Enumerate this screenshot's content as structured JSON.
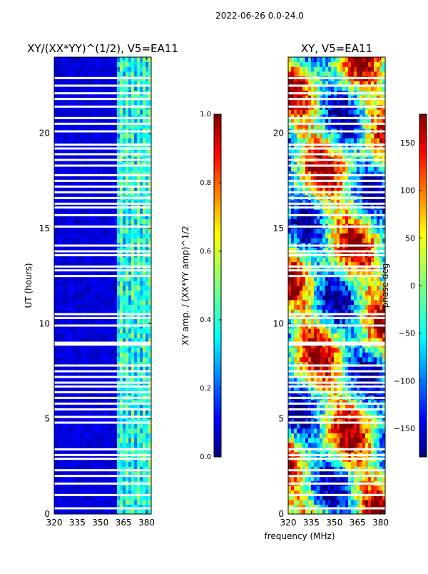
{
  "figure": {
    "suptitle": "2022-06-26 0.0-24.0",
    "shared_xlabel": "frequency (MHz)"
  },
  "chart_data": [
    {
      "type": "heatmap",
      "title": "XY/(XX*YY)¹ᐟ², V5=EA11",
      "title_plain": "XY/(XX*YY)^(1/2), V5=EA11",
      "xlabel": "frequency (MHz)",
      "ylabel": "UT (hours)",
      "xlim": [
        320,
        383
      ],
      "ylim": [
        0,
        24
      ],
      "xticks": [
        320,
        335,
        350,
        365,
        380
      ],
      "yticks": [
        0,
        5,
        10,
        15,
        20
      ],
      "colormap": "jet",
      "colorbar": {
        "label": "XY amp. / (XX*YY amp)^1/2",
        "range": [
          0.0,
          1.0
        ],
        "ticks": [
          "0.0",
          "0.2",
          "0.4",
          "0.6",
          "0.8",
          "1.0"
        ]
      },
      "description_values": {
        "low_band_amp": 0.05,
        "high_band_start_mhz": 360,
        "high_band_amp_range": [
          0.2,
          0.6
        ]
      }
    },
    {
      "type": "heatmap",
      "title": "XY, V5=EA11",
      "xlabel": "frequency (MHz)",
      "ylabel": "",
      "xlim": [
        320,
        383
      ],
      "ylim": [
        0,
        24
      ],
      "xticks": [
        320,
        335,
        350,
        365,
        380
      ],
      "yticks": [
        0,
        5,
        10,
        15,
        20
      ],
      "colormap": "jet",
      "colorbar": {
        "label": "phase deg",
        "range": [
          -180,
          180
        ],
        "ticks": [
          "150",
          "100",
          "50",
          "0",
          "−50",
          "−100",
          "−150"
        ],
        "tick_values": [
          150,
          100,
          50,
          0,
          -50,
          -100,
          -150
        ]
      }
    }
  ],
  "flagged_hours": [
    0.3,
    1.0,
    1.6,
    2.0,
    2.3,
    2.9,
    3.1,
    3.4,
    4.8,
    5.1,
    5.5,
    5.8,
    6.1,
    6.4,
    6.7,
    6.9,
    7.2,
    7.5,
    7.8,
    8.9,
    9.0,
    9.9,
    10.3,
    10.5,
    12.5,
    12.8,
    13.0,
    13.6,
    13.8,
    14.1,
    15.1,
    15.7,
    16.1,
    16.3,
    16.6,
    16.9,
    17.2,
    17.5,
    17.8,
    18.3,
    18.6,
    18.9,
    19.2,
    19.4,
    20.1,
    20.5,
    20.8,
    21.4,
    21.8,
    22.1,
    22.5,
    22.9
  ]
}
